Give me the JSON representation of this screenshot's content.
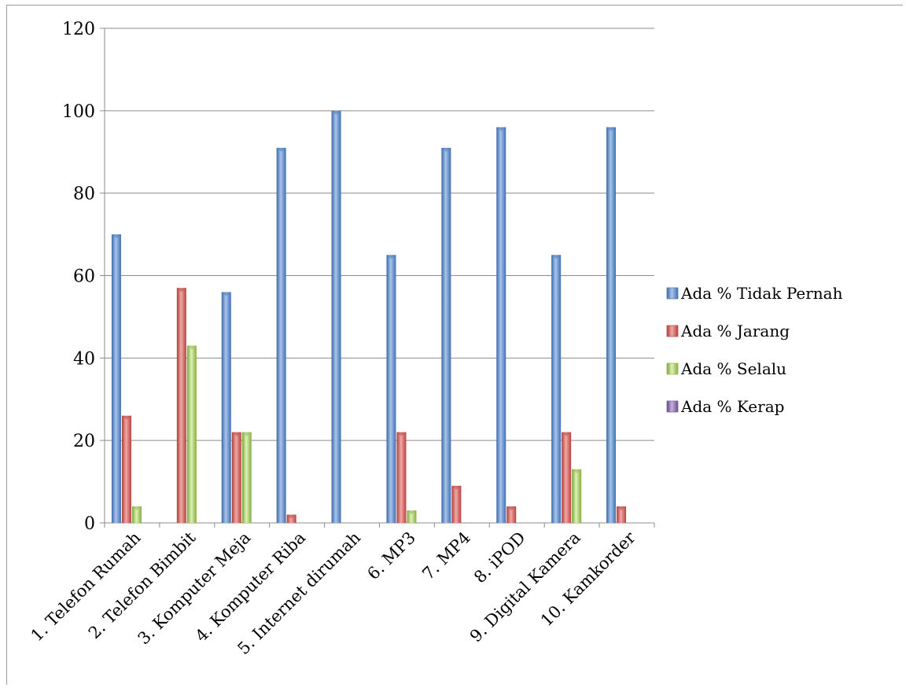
{
  "chart_data": {
    "type": "bar",
    "title": "",
    "xlabel": "",
    "ylabel": "",
    "ylim": [
      0,
      120
    ],
    "yticks": [
      0,
      20,
      40,
      60,
      80,
      100,
      120
    ],
    "grid": true,
    "legend_position": "right",
    "categories": [
      "1. Telefon Rumah",
      "2. Telefon Bimbit",
      "3. Komputer Meja",
      "4. Komputer Riba",
      "5. Internet dirumah",
      "6. MP3",
      "7. MP4",
      "8. iPOD",
      "9. Digital Kamera",
      "10. Kamkorder"
    ],
    "series": [
      {
        "name": "Ada % Tidak Pernah",
        "color": "#4f81bd",
        "values": [
          70,
          0,
          56,
          91,
          100,
          65,
          91,
          96,
          65,
          96
        ]
      },
      {
        "name": "Ada % Jarang",
        "color": "#c0504d",
        "values": [
          26,
          57,
          22,
          2,
          0,
          22,
          9,
          4,
          22,
          4
        ]
      },
      {
        "name": "Ada % Selalu",
        "color": "#9bbb59",
        "values": [
          4,
          43,
          22,
          0,
          0,
          3,
          0,
          0,
          13,
          0
        ]
      },
      {
        "name": "Ada % Kerap",
        "color": "#8064a2",
        "values": [
          0,
          0,
          0,
          0,
          0,
          0,
          0,
          0,
          0,
          0
        ]
      }
    ]
  }
}
